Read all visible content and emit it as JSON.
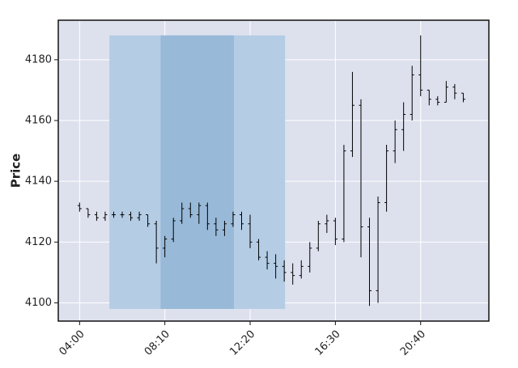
{
  "chart_data": {
    "type": "ohlc",
    "y_label": "Price",
    "categories": [
      "04:00",
      null,
      null,
      null,
      null,
      null,
      null,
      null,
      null,
      null,
      "08:10",
      null,
      null,
      null,
      null,
      null,
      null,
      null,
      null,
      null,
      "12:20",
      null,
      null,
      null,
      null,
      null,
      null,
      null,
      null,
      null,
      "16:30",
      null,
      null,
      null,
      null,
      null,
      null,
      null,
      null,
      null,
      "20:40",
      null,
      null,
      null,
      null,
      null
    ],
    "open": [
      4132,
      4131,
      4129,
      4128,
      4129,
      4129,
      4129,
      4128,
      4129,
      4126,
      4118,
      4121,
      4127,
      4131,
      4129,
      4132,
      4126,
      4124,
      4126,
      4129,
      4126,
      4120,
      4115,
      4113,
      4112,
      4110,
      4109,
      4112,
      4118,
      4126,
      4127,
      4121,
      4150,
      4165,
      4125,
      4104,
      4133,
      4150,
      4157,
      4162,
      4175,
      4170,
      4167,
      4166,
      4171,
      4169
    ],
    "high": [
      4133,
      4131,
      4130,
      4130,
      4130,
      4130,
      4130,
      4130,
      4129,
      4127,
      4122,
      4128,
      4133,
      4133,
      4133,
      4133,
      4128,
      4127,
      4130,
      4130,
      4129,
      4121,
      4117,
      4116,
      4114,
      4113,
      4114,
      4120,
      4127,
      4129,
      4128,
      4152,
      4176,
      4167,
      4128,
      4135,
      4152,
      4160,
      4166,
      4178,
      4188,
      4170,
      4168,
      4173,
      4172,
      4169
    ],
    "low": [
      4130,
      4128,
      4127,
      4127,
      4128,
      4128,
      4127,
      4127,
      4125,
      4113,
      4115,
      4120,
      4126,
      4128,
      4126,
      4124,
      4122,
      4122,
      4125,
      4124,
      4118,
      4114,
      4111,
      4108,
      4107,
      4106,
      4108,
      4110,
      4117,
      4123,
      4119,
      4120,
      4148,
      4115,
      4099,
      4100,
      4130,
      4146,
      4150,
      4160,
      4168,
      4165,
      4165,
      4166,
      4167,
      4166
    ],
    "close": [
      4131,
      4129,
      4128,
      4129,
      4129,
      4129,
      4128,
      4129,
      4126,
      4118,
      4121,
      4127,
      4131,
      4129,
      4132,
      4126,
      4124,
      4126,
      4129,
      4126,
      4120,
      4115,
      4113,
      4112,
      4110,
      4109,
      4112,
      4118,
      4126,
      4127,
      4121,
      4150,
      4165,
      4125,
      4104,
      4133,
      4150,
      4157,
      4162,
      4175,
      4170,
      4167,
      4166,
      4171,
      4169,
      4167
    ],
    "color": "#000000",
    "xlim": [
      -2.5,
      48
    ],
    "ylim": [
      4094,
      4193
    ],
    "yticks": [
      4100,
      4120,
      4140,
      4160,
      4180
    ],
    "grid": true,
    "regions": [
      {
        "x": [
          3.5,
          24.1
        ],
        "y": [
          4098,
          4188
        ],
        "color": "#b4cce4"
      },
      {
        "x": [
          9.5,
          18.1
        ],
        "y": [
          4098,
          4188
        ],
        "color": "#98b9d8"
      }
    ]
  }
}
